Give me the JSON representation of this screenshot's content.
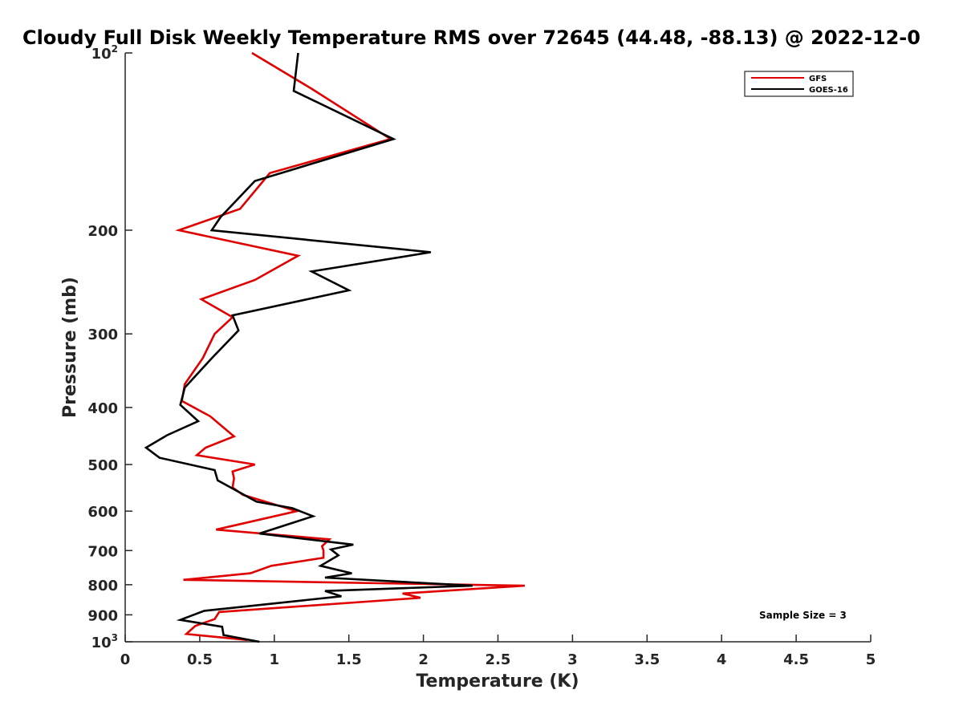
{
  "chart_data": {
    "type": "line",
    "title": "Cloudy Full Disk Weekly Temperature RMS over 72645 (44.48, -88.13) @ 2022-12-0",
    "xlabel": "Temperature (K)",
    "ylabel": "Pressure (mb)",
    "xlim": [
      0,
      5
    ],
    "ylim": [
      100,
      1000
    ],
    "y_scale": "log",
    "y_reversed": true,
    "grid": false,
    "legend_position": "top-right",
    "x_ticks": [
      "0",
      "0.5",
      "1",
      "1.5",
      "2",
      "2.5",
      "3",
      "3.5",
      "4",
      "4.5",
      "5"
    ],
    "x_tick_values": [
      0,
      0.5,
      1,
      1.5,
      2,
      2.5,
      3,
      3.5,
      4,
      4.5,
      5
    ],
    "y_ticks": [
      {
        "value": 100,
        "base": "10",
        "exp": "2"
      },
      {
        "value": 200,
        "label": "200"
      },
      {
        "value": 300,
        "label": "300"
      },
      {
        "value": 400,
        "label": "400"
      },
      {
        "value": 500,
        "label": "500"
      },
      {
        "value": 600,
        "label": "600"
      },
      {
        "value": 700,
        "label": "700"
      },
      {
        "value": 800,
        "label": "800"
      },
      {
        "value": 900,
        "label": "900"
      },
      {
        "value": 1000,
        "base": "10",
        "exp": "3"
      }
    ],
    "annotation": "Sample Size = 3",
    "series": [
      {
        "name": "GFS",
        "color": "#e00000",
        "points": [
          [
            0.85,
            100
          ],
          [
            1.25,
            115
          ],
          [
            1.78,
            140
          ],
          [
            0.97,
            160
          ],
          [
            0.77,
            184
          ],
          [
            0.36,
            200
          ],
          [
            1.16,
            221
          ],
          [
            0.87,
            243
          ],
          [
            0.51,
            262
          ],
          [
            0.72,
            281
          ],
          [
            0.6,
            300
          ],
          [
            0.52,
            330
          ],
          [
            0.4,
            365
          ],
          [
            0.38,
            390
          ],
          [
            0.57,
            414
          ],
          [
            0.73,
            448
          ],
          [
            0.54,
            468
          ],
          [
            0.48,
            482
          ],
          [
            0.87,
            500
          ],
          [
            0.72,
            514
          ],
          [
            0.73,
            528
          ],
          [
            0.72,
            547
          ],
          [
            0.79,
            563
          ],
          [
            1.15,
            600
          ],
          [
            0.61,
            645
          ],
          [
            1.37,
            670
          ],
          [
            1.32,
            688
          ],
          [
            1.33,
            700
          ],
          [
            1.33,
            720
          ],
          [
            0.98,
            743
          ],
          [
            0.84,
            765
          ],
          [
            0.39,
            785
          ],
          [
            2.68,
            803
          ],
          [
            1.86,
            828
          ],
          [
            1.98,
            842
          ],
          [
            0.63,
            890
          ],
          [
            0.6,
            915
          ],
          [
            0.47,
            940
          ],
          [
            0.41,
            970
          ],
          [
            0.82,
            993
          ]
        ]
      },
      {
        "name": "GOES-16",
        "color": "#000000",
        "points": [
          [
            1.16,
            100
          ],
          [
            1.13,
            116
          ],
          [
            1.8,
            140
          ],
          [
            0.87,
            165
          ],
          [
            0.64,
            190
          ],
          [
            0.58,
            200
          ],
          [
            2.05,
            218
          ],
          [
            1.25,
            235
          ],
          [
            1.5,
            253
          ],
          [
            0.72,
            279
          ],
          [
            0.76,
            296
          ],
          [
            0.58,
            330
          ],
          [
            0.4,
            370
          ],
          [
            0.37,
            396
          ],
          [
            0.49,
            422
          ],
          [
            0.28,
            446
          ],
          [
            0.14,
            468
          ],
          [
            0.23,
            487
          ],
          [
            0.6,
            511
          ],
          [
            0.62,
            532
          ],
          [
            0.88,
            578
          ],
          [
            1.12,
            593
          ],
          [
            1.26,
            612
          ],
          [
            0.9,
            655
          ],
          [
            1.53,
            684
          ],
          [
            1.38,
            697
          ],
          [
            1.43,
            713
          ],
          [
            1.31,
            743
          ],
          [
            1.52,
            765
          ],
          [
            1.34,
            778
          ],
          [
            2.33,
            803
          ],
          [
            1.34,
            820
          ],
          [
            1.45,
            837
          ],
          [
            0.53,
            886
          ],
          [
            0.37,
            918
          ],
          [
            0.65,
            943
          ],
          [
            0.66,
            974
          ],
          [
            0.9,
            1000
          ]
        ]
      }
    ]
  }
}
